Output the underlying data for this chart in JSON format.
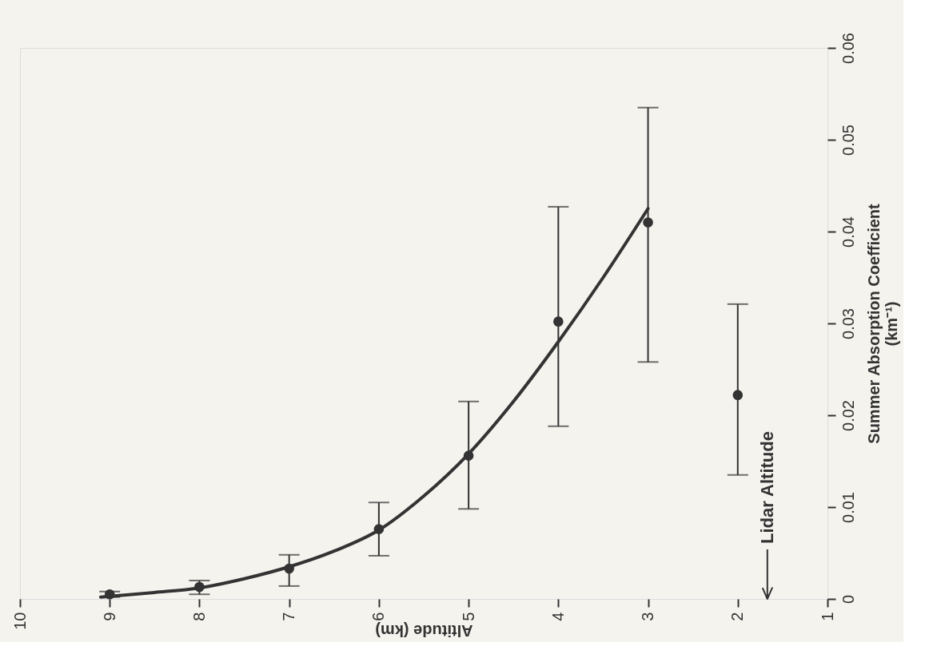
{
  "chart_data": {
    "type": "scatter",
    "xlabel": "Altitude (km)",
    "ylabel": "Summer Absorption Coefficient\n(km⁻¹)",
    "xlim": [
      10,
      1
    ],
    "xticks": [
      10,
      9,
      8,
      7,
      6,
      5,
      4,
      3,
      2,
      1
    ],
    "ylim": [
      0,
      0.06
    ],
    "yticks": [
      0,
      0.01,
      0.02,
      0.03,
      0.04,
      0.05,
      0.06
    ],
    "grid": false,
    "series": [
      {
        "color": "#333333",
        "marker": "circle",
        "x": [
          9,
          8,
          7,
          6,
          5,
          4,
          3,
          2
        ],
        "values": [
          0.0005,
          0.0013,
          0.0033,
          0.0076,
          0.0156,
          0.0302,
          0.041,
          0.0222
        ],
        "errors": [
          [
            0.0002,
            0.0008
          ],
          [
            0.0005,
            0.002
          ],
          [
            0.0014,
            0.0048
          ],
          [
            0.0047,
            0.0105
          ],
          [
            0.0098,
            0.0215
          ],
          [
            0.0188,
            0.0427
          ],
          [
            0.0258,
            0.0535
          ],
          [
            0.0135,
            0.0321
          ]
        ]
      },
      {
        "type": "line",
        "color": "#333333",
        "x": [
          9.1,
          8.5,
          8,
          7.5,
          7,
          6.5,
          6,
          5.5,
          5,
          4.5,
          4,
          3.5,
          3
        ],
        "values": [
          0.0002,
          0.0007,
          0.0012,
          0.0022,
          0.0035,
          0.0052,
          0.0075,
          0.0112,
          0.0158,
          0.0215,
          0.028,
          0.035,
          0.0425
        ]
      }
    ],
    "ref_lines": [
      {
        "axis": "x",
        "value": 1.67,
        "label": "Lidar Altitude"
      }
    ]
  }
}
